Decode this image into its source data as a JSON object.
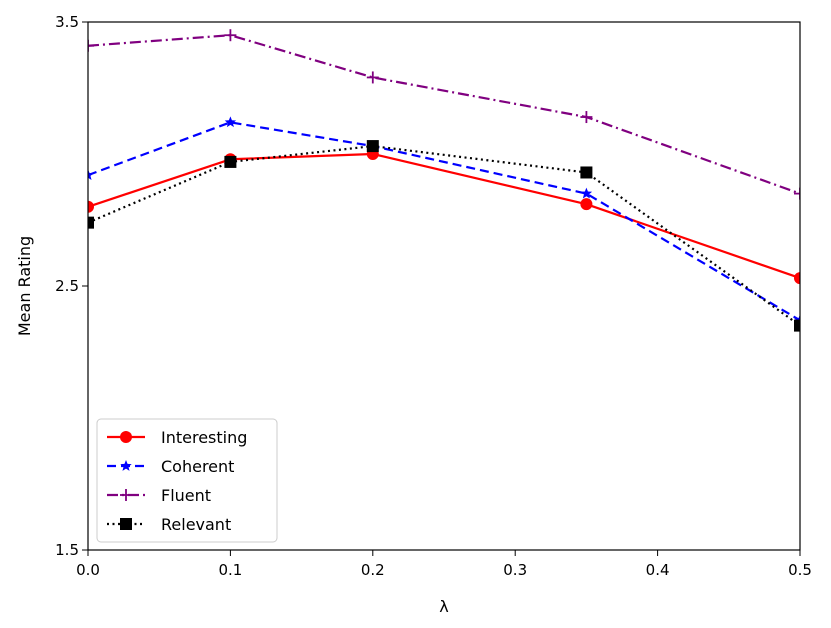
{
  "chart_data": {
    "type": "line",
    "title": "",
    "xlabel": "λ",
    "ylabel": "Mean Rating",
    "xlim": [
      0.0,
      0.5
    ],
    "ylim": [
      1.5,
      3.5
    ],
    "xticks": [
      0.0,
      0.1,
      0.2,
      0.3,
      0.4,
      0.5
    ],
    "xtick_labels": [
      "0.0",
      "0.1",
      "0.2",
      "0.3",
      "0.4",
      "0.5"
    ],
    "yticks": [
      1.5,
      2.5,
      3.5
    ],
    "ytick_labels": [
      "1.5",
      "2.5",
      "3.5"
    ],
    "grid": false,
    "legend_position": "lower-left",
    "x": [
      0.0,
      0.1,
      0.2,
      0.35,
      0.5
    ],
    "series": [
      {
        "name": "Interesting",
        "values": [
          2.8,
          2.98,
          3.0,
          2.81,
          2.53
        ],
        "color": "#ff0000",
        "marker": "circle",
        "linestyle": "solid"
      },
      {
        "name": "Coherent",
        "values": [
          2.92,
          3.12,
          3.03,
          2.85,
          2.37
        ],
        "color": "#0000ff",
        "marker": "star",
        "linestyle": "dashed"
      },
      {
        "name": "Fluent",
        "values": [
          3.41,
          3.45,
          3.29,
          3.14,
          2.85
        ],
        "color": "#800080",
        "marker": "plus",
        "linestyle": "dashdot"
      },
      {
        "name": "Relevant",
        "values": [
          2.74,
          2.97,
          3.03,
          2.93,
          2.35
        ],
        "color": "#000000",
        "marker": "square",
        "linestyle": "dotted"
      }
    ]
  }
}
